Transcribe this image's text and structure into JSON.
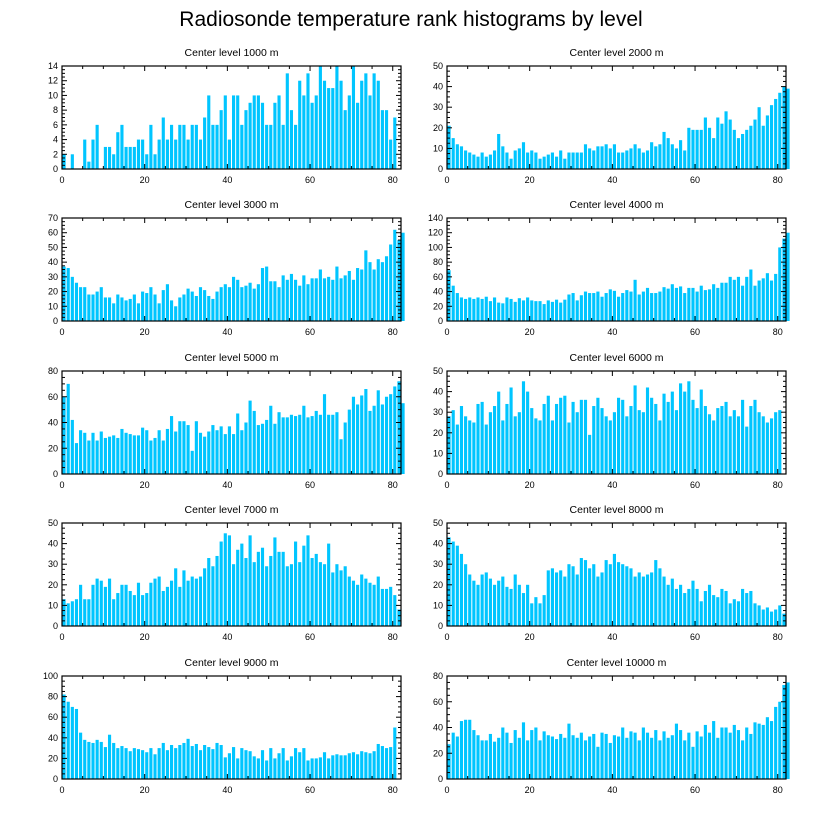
{
  "title": "Radiosonde temperature rank histograms by level",
  "colors": {
    "bar": "#00c5ff",
    "axis": "#000000",
    "background": "#ffffff"
  },
  "chart_data": [
    {
      "type": "bar",
      "title": "Center level 1000 m",
      "xlim": [
        0,
        82
      ],
      "ylim": [
        0,
        14
      ],
      "xticks": [
        0,
        20,
        40,
        60,
        80
      ],
      "yticks": [
        0,
        2,
        4,
        6,
        8,
        10,
        12,
        14
      ],
      "values": [
        2,
        0,
        2,
        0,
        0,
        4,
        1,
        4,
        6,
        0,
        3,
        3,
        2,
        5,
        6,
        3,
        3,
        3,
        4,
        4,
        2,
        6,
        2,
        4,
        7,
        4,
        6,
        4,
        6,
        6,
        4,
        6,
        6,
        4,
        7,
        10,
        6,
        6,
        8,
        10,
        4,
        10,
        10,
        6,
        8,
        9,
        10,
        10,
        9,
        6,
        6,
        9,
        10,
        6,
        13,
        8,
        6,
        12,
        10,
        13,
        9,
        10,
        14,
        12,
        11,
        11,
        14,
        12,
        8,
        10,
        14,
        9,
        12,
        13,
        10,
        13,
        12,
        8,
        8,
        4,
        7
      ]
    },
    {
      "type": "bar",
      "title": "Center level 2000 m",
      "xlim": [
        0,
        82
      ],
      "ylim": [
        0,
        50
      ],
      "xticks": [
        0,
        20,
        40,
        60,
        80
      ],
      "yticks": [
        0,
        10,
        20,
        30,
        40,
        50
      ],
      "values": [
        21,
        15,
        12,
        11,
        9,
        8,
        7,
        6,
        8,
        6,
        7,
        9,
        17,
        11,
        8,
        5,
        9,
        10,
        13,
        8,
        9,
        8,
        5,
        6,
        7,
        8,
        6,
        9,
        5,
        8,
        8,
        8,
        8,
        12,
        10,
        9,
        11,
        11,
        12,
        10,
        12,
        8,
        8,
        9,
        10,
        12,
        10,
        8,
        9,
        13,
        11,
        12,
        18,
        15,
        12,
        10,
        14,
        9,
        20,
        19,
        19,
        19,
        25,
        20,
        15,
        25,
        22,
        28,
        24,
        19,
        15,
        17,
        19,
        21,
        24,
        30,
        21,
        26,
        31,
        34,
        37,
        40,
        39
      ]
    },
    {
      "type": "bar",
      "title": "Center level 3000 m",
      "xlim": [
        0,
        82
      ],
      "ylim": [
        0,
        70
      ],
      "xticks": [
        0,
        20,
        40,
        60,
        80
      ],
      "yticks": [
        0,
        10,
        20,
        30,
        40,
        50,
        60,
        70
      ],
      "values": [
        37,
        36,
        30,
        26,
        23,
        23,
        18,
        18,
        20,
        23,
        16,
        16,
        12,
        18,
        16,
        14,
        15,
        18,
        12,
        20,
        19,
        23,
        18,
        12,
        21,
        25,
        14,
        10,
        16,
        18,
        22,
        20,
        17,
        23,
        21,
        17,
        15,
        20,
        23,
        25,
        23,
        30,
        28,
        23,
        24,
        26,
        22,
        25,
        36,
        37,
        27,
        27,
        23,
        31,
        28,
        32,
        28,
        24,
        31,
        25,
        29,
        29,
        35,
        29,
        30,
        28,
        37,
        29,
        31,
        34,
        28,
        36,
        35,
        48,
        40,
        35,
        42,
        40,
        44,
        52,
        62,
        55,
        60
      ]
    },
    {
      "type": "bar",
      "title": "Center level 4000 m",
      "xlim": [
        0,
        82
      ],
      "ylim": [
        0,
        140
      ],
      "xticks": [
        0,
        20,
        40,
        60,
        80
      ],
      "yticks": [
        0,
        20,
        40,
        60,
        80,
        100,
        120,
        140
      ],
      "values": [
        69,
        48,
        38,
        32,
        30,
        32,
        30,
        32,
        30,
        33,
        27,
        32,
        25,
        24,
        32,
        30,
        26,
        31,
        28,
        32,
        28,
        27,
        27,
        23,
        28,
        26,
        29,
        25,
        29,
        36,
        38,
        28,
        35,
        40,
        38,
        38,
        40,
        33,
        38,
        43,
        41,
        33,
        38,
        42,
        40,
        56,
        36,
        40,
        45,
        38,
        38,
        40,
        46,
        44,
        50,
        45,
        47,
        38,
        45,
        45,
        40,
        48,
        42,
        43,
        50,
        45,
        52,
        52,
        60,
        56,
        60,
        48,
        60,
        70,
        48,
        55,
        58,
        65,
        55,
        64,
        100,
        112,
        120
      ]
    },
    {
      "type": "bar",
      "title": "Center level 5000 m",
      "xlim": [
        0,
        82
      ],
      "ylim": [
        0,
        80
      ],
      "xticks": [
        0,
        20,
        40,
        60,
        80
      ],
      "yticks": [
        0,
        20,
        40,
        60,
        80
      ],
      "values": [
        60,
        70,
        42,
        24,
        34,
        32,
        26,
        32,
        26,
        33,
        28,
        29,
        30,
        28,
        35,
        32,
        31,
        30,
        30,
        36,
        34,
        26,
        28,
        34,
        26,
        35,
        45,
        33,
        41,
        41,
        38,
        18,
        41,
        32,
        29,
        33,
        38,
        34,
        37,
        31,
        37,
        31,
        47,
        34,
        40,
        57,
        49,
        38,
        39,
        42,
        53,
        39,
        48,
        44,
        44,
        46,
        45,
        46,
        53,
        44,
        45,
        49,
        46,
        62,
        46,
        46,
        48,
        27,
        40,
        50,
        60,
        54,
        61,
        66,
        49,
        53,
        65,
        54,
        60,
        62,
        68,
        72,
        55
      ]
    },
    {
      "type": "bar",
      "title": "Center level 6000 m",
      "xlim": [
        0,
        82
      ],
      "ylim": [
        0,
        50
      ],
      "xticks": [
        0,
        20,
        40,
        60,
        80
      ],
      "yticks": [
        0,
        10,
        20,
        30,
        40,
        50
      ],
      "values": [
        28,
        31,
        24,
        33,
        28,
        26,
        25,
        34,
        35,
        24,
        30,
        33,
        40,
        26,
        34,
        42,
        28,
        30,
        45,
        40,
        32,
        27,
        26,
        34,
        38,
        26,
        34,
        37,
        38,
        25,
        35,
        30,
        36,
        36,
        19,
        33,
        37,
        32,
        28,
        26,
        30,
        37,
        36,
        28,
        33,
        43,
        31,
        30,
        42,
        37,
        34,
        26,
        39,
        35,
        40,
        31,
        44,
        40,
        45,
        36,
        32,
        41,
        33,
        29,
        26,
        32,
        33,
        35,
        28,
        31,
        28,
        36,
        23,
        33,
        36,
        30,
        28,
        25,
        27,
        30,
        31
      ]
    },
    {
      "type": "bar",
      "title": "Center level 7000 m",
      "xlim": [
        0,
        82
      ],
      "ylim": [
        0,
        50
      ],
      "xticks": [
        0,
        20,
        40,
        60,
        80
      ],
      "yticks": [
        0,
        10,
        20,
        30,
        40,
        50
      ],
      "values": [
        13,
        11,
        12,
        13,
        20,
        13,
        13,
        20,
        23,
        22,
        19,
        23,
        13,
        16,
        20,
        20,
        17,
        15,
        21,
        15,
        16,
        21,
        23,
        24,
        17,
        19,
        22,
        28,
        19,
        27,
        22,
        24,
        23,
        24,
        28,
        33,
        29,
        34,
        41,
        45,
        44,
        30,
        37,
        40,
        33,
        44,
        31,
        36,
        38,
        29,
        34,
        43,
        36,
        36,
        29,
        30,
        41,
        31,
        39,
        44,
        33,
        35,
        31,
        30,
        40,
        26,
        30,
        27,
        29,
        24,
        22,
        20,
        25,
        23,
        21,
        20,
        24,
        18,
        18,
        19,
        15,
        8
      ]
    },
    {
      "type": "bar",
      "title": "Center level 8000 m",
      "xlim": [
        0,
        82
      ],
      "ylim": [
        0,
        50
      ],
      "xticks": [
        0,
        20,
        40,
        60,
        80
      ],
      "yticks": [
        0,
        10,
        20,
        30,
        40,
        50
      ],
      "values": [
        43,
        41,
        39,
        35,
        30,
        25,
        22,
        20,
        25,
        26,
        23,
        20,
        22,
        24,
        19,
        18,
        25,
        20,
        16,
        20,
        11,
        14,
        11,
        15,
        27,
        28,
        26,
        27,
        24,
        30,
        29,
        25,
        33,
        32,
        28,
        30,
        24,
        26,
        32,
        30,
        35,
        31,
        30,
        29,
        28,
        24,
        26,
        24,
        25,
        26,
        32,
        28,
        24,
        20,
        23,
        18,
        20,
        16,
        18,
        22,
        18,
        12,
        17,
        20,
        15,
        14,
        18,
        17,
        11,
        13,
        12,
        18,
        16,
        17,
        11,
        10,
        8,
        9,
        7,
        8,
        10,
        6
      ]
    },
    {
      "type": "bar",
      "title": "Center level 9000 m",
      "xlim": [
        0,
        82
      ],
      "ylim": [
        0,
        100
      ],
      "xticks": [
        0,
        20,
        40,
        60,
        80
      ],
      "yticks": [
        0,
        20,
        40,
        60,
        80,
        100
      ],
      "values": [
        82,
        75,
        70,
        68,
        45,
        38,
        36,
        35,
        38,
        36,
        31,
        43,
        35,
        30,
        32,
        30,
        27,
        30,
        29,
        28,
        26,
        30,
        24,
        30,
        35,
        28,
        33,
        30,
        33,
        35,
        39,
        32,
        34,
        28,
        33,
        31,
        29,
        35,
        33,
        21,
        25,
        31,
        20,
        30,
        28,
        27,
        22,
        20,
        28,
        18,
        30,
        20,
        25,
        30,
        18,
        22,
        30,
        26,
        30,
        18,
        20,
        20,
        21,
        26,
        20,
        23,
        24,
        23,
        23,
        25,
        26,
        24,
        27,
        26,
        25,
        27,
        34,
        32,
        30,
        31,
        50
      ]
    },
    {
      "type": "bar",
      "title": "Center level 10000 m",
      "xlim": [
        0,
        82
      ],
      "ylim": [
        0,
        80
      ],
      "xticks": [
        0,
        20,
        40,
        60,
        80
      ],
      "yticks": [
        0,
        20,
        40,
        60,
        80
      ],
      "values": [
        27,
        36,
        33,
        45,
        46,
        46,
        38,
        34,
        30,
        30,
        35,
        29,
        32,
        40,
        36,
        28,
        38,
        32,
        44,
        30,
        38,
        40,
        30,
        37,
        34,
        33,
        31,
        35,
        32,
        43,
        34,
        32,
        36,
        30,
        33,
        35,
        25,
        36,
        35,
        28,
        34,
        33,
        40,
        32,
        37,
        36,
        30,
        40,
        36,
        32,
        38,
        30,
        37,
        32,
        34,
        43,
        38,
        30,
        36,
        25,
        37,
        33,
        42,
        36,
        45,
        32,
        40,
        40,
        36,
        42,
        38,
        30,
        40,
        35,
        44,
        43,
        42,
        48,
        45,
        56,
        60,
        73,
        75
      ]
    }
  ]
}
